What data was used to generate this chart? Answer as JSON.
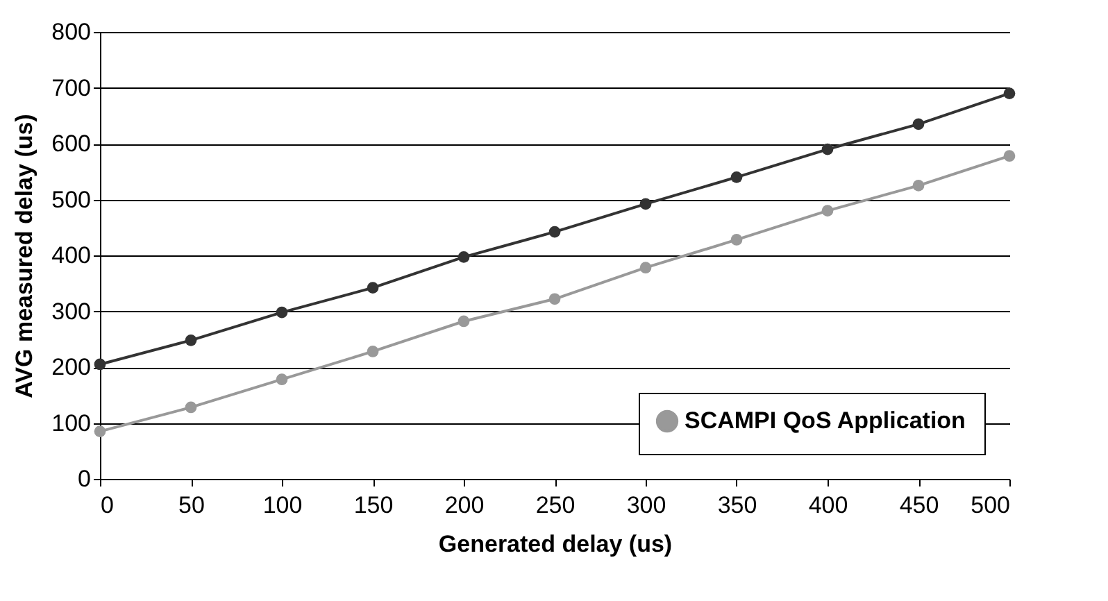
{
  "chart_data": {
    "type": "line",
    "xlabel": "Generated delay (us)",
    "ylabel": "AVG measured delay (us)",
    "x": [
      0,
      50,
      100,
      150,
      200,
      250,
      300,
      350,
      400,
      450,
      500
    ],
    "series": [
      {
        "color": "#333333",
        "values": [
          205,
          248,
          298,
          342,
          397,
          442,
          492,
          540,
          590,
          635,
          690
        ]
      },
      {
        "name": "SCAMPI QoS Application",
        "color": "#999999",
        "values": [
          85,
          128,
          178,
          228,
          282,
          322,
          378,
          428,
          480,
          525,
          578
        ]
      }
    ],
    "xlim": [
      0,
      500
    ],
    "xticks": [
      0,
      50,
      100,
      150,
      200,
      250,
      300,
      350,
      400,
      450,
      500
    ],
    "ylim": [
      0,
      800
    ],
    "yticks": [
      0,
      100,
      200,
      300,
      400,
      500,
      600,
      700,
      800
    ],
    "grid": "y",
    "legend": "bottom right",
    "marker": "circle",
    "line_style": "solid"
  }
}
